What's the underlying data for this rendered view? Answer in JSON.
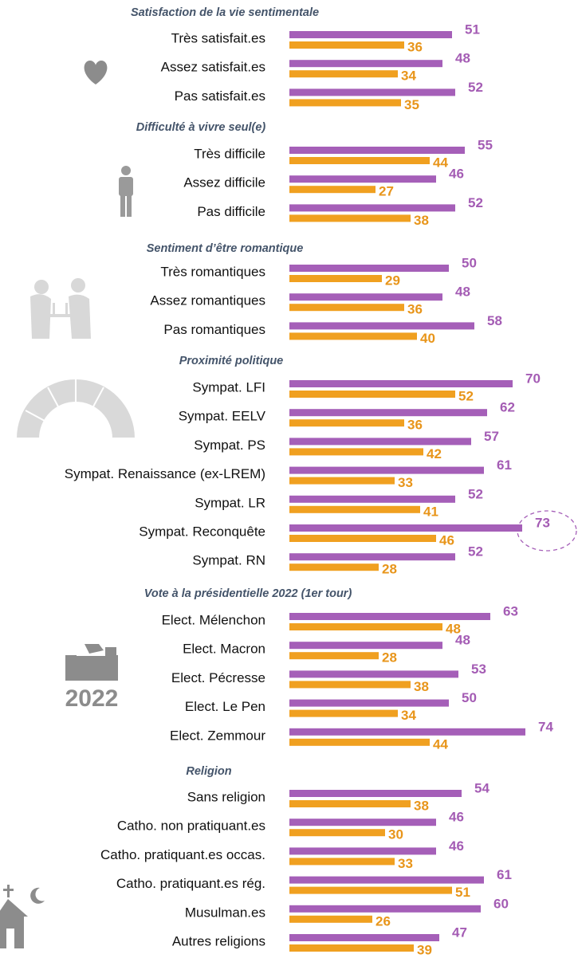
{
  "chart_data": [
    {
      "type": "bar",
      "title": "Satisfaction de la vie sentimentale",
      "categories": [
        "Très satisfait.es",
        "Assez satisfait.es",
        "Pas satisfait.es"
      ],
      "series": [
        {
          "color": "#a55fb8",
          "values": [
            51,
            48,
            52
          ]
        },
        {
          "color": "#f0a020",
          "values": [
            36,
            34,
            35
          ]
        }
      ]
    },
    {
      "type": "bar",
      "title": "Difficulté à vivre seul(e)",
      "categories": [
        "Très difficile",
        "Assez difficile",
        "Pas difficile"
      ],
      "series": [
        {
          "color": "#a55fb8",
          "values": [
            55,
            46,
            52
          ]
        },
        {
          "color": "#f0a020",
          "values": [
            44,
            27,
            38
          ]
        }
      ]
    },
    {
      "type": "bar",
      "title": "Sentiment d’être romantique",
      "categories": [
        "Très romantiques",
        "Assez romantiques",
        "Pas romantiques"
      ],
      "series": [
        {
          "color": "#a55fb8",
          "values": [
            50,
            48,
            58
          ]
        },
        {
          "color": "#f0a020",
          "values": [
            29,
            36,
            40
          ]
        }
      ]
    },
    {
      "type": "bar",
      "title": "Proximité politique",
      "categories": [
        "Sympat. LFI",
        "Sympat. EELV",
        "Sympat. PS",
        "Sympat. Renaissance (ex-LREM)",
        "Sympat. LR",
        "Sympat. Reconquête",
        "Sympat. RN"
      ],
      "series": [
        {
          "color": "#a55fb8",
          "values": [
            70,
            62,
            57,
            61,
            52,
            73,
            52
          ]
        },
        {
          "color": "#f0a020",
          "values": [
            52,
            36,
            42,
            33,
            41,
            46,
            28
          ]
        }
      ]
    },
    {
      "type": "bar",
      "title": "Vote à la présidentielle 2022 (1er tour)",
      "icon_text": "2022",
      "categories": [
        "Elect. Mélenchon",
        "Elect. Macron",
        "Elect. Pécresse",
        "Elect. Le Pen",
        "Elect. Zemmour"
      ],
      "series": [
        {
          "color": "#a55fb8",
          "values": [
            63,
            48,
            53,
            50,
            74
          ]
        },
        {
          "color": "#f0a020",
          "values": [
            48,
            28,
            38,
            34,
            44
          ]
        }
      ]
    },
    {
      "type": "bar",
      "title": "Religion",
      "categories": [
        "Sans religion",
        "Catho. non pratiquant.es",
        "Catho. pratiquant.es occas.",
        "Catho. pratiquant.es rég.",
        "Musulman.es",
        "Autres religions"
      ],
      "series": [
        {
          "color": "#a55fb8",
          "values": [
            54,
            46,
            46,
            61,
            60,
            47
          ]
        },
        {
          "color": "#f0a020",
          "values": [
            38,
            30,
            33,
            51,
            26,
            39
          ]
        }
      ]
    }
  ]
}
